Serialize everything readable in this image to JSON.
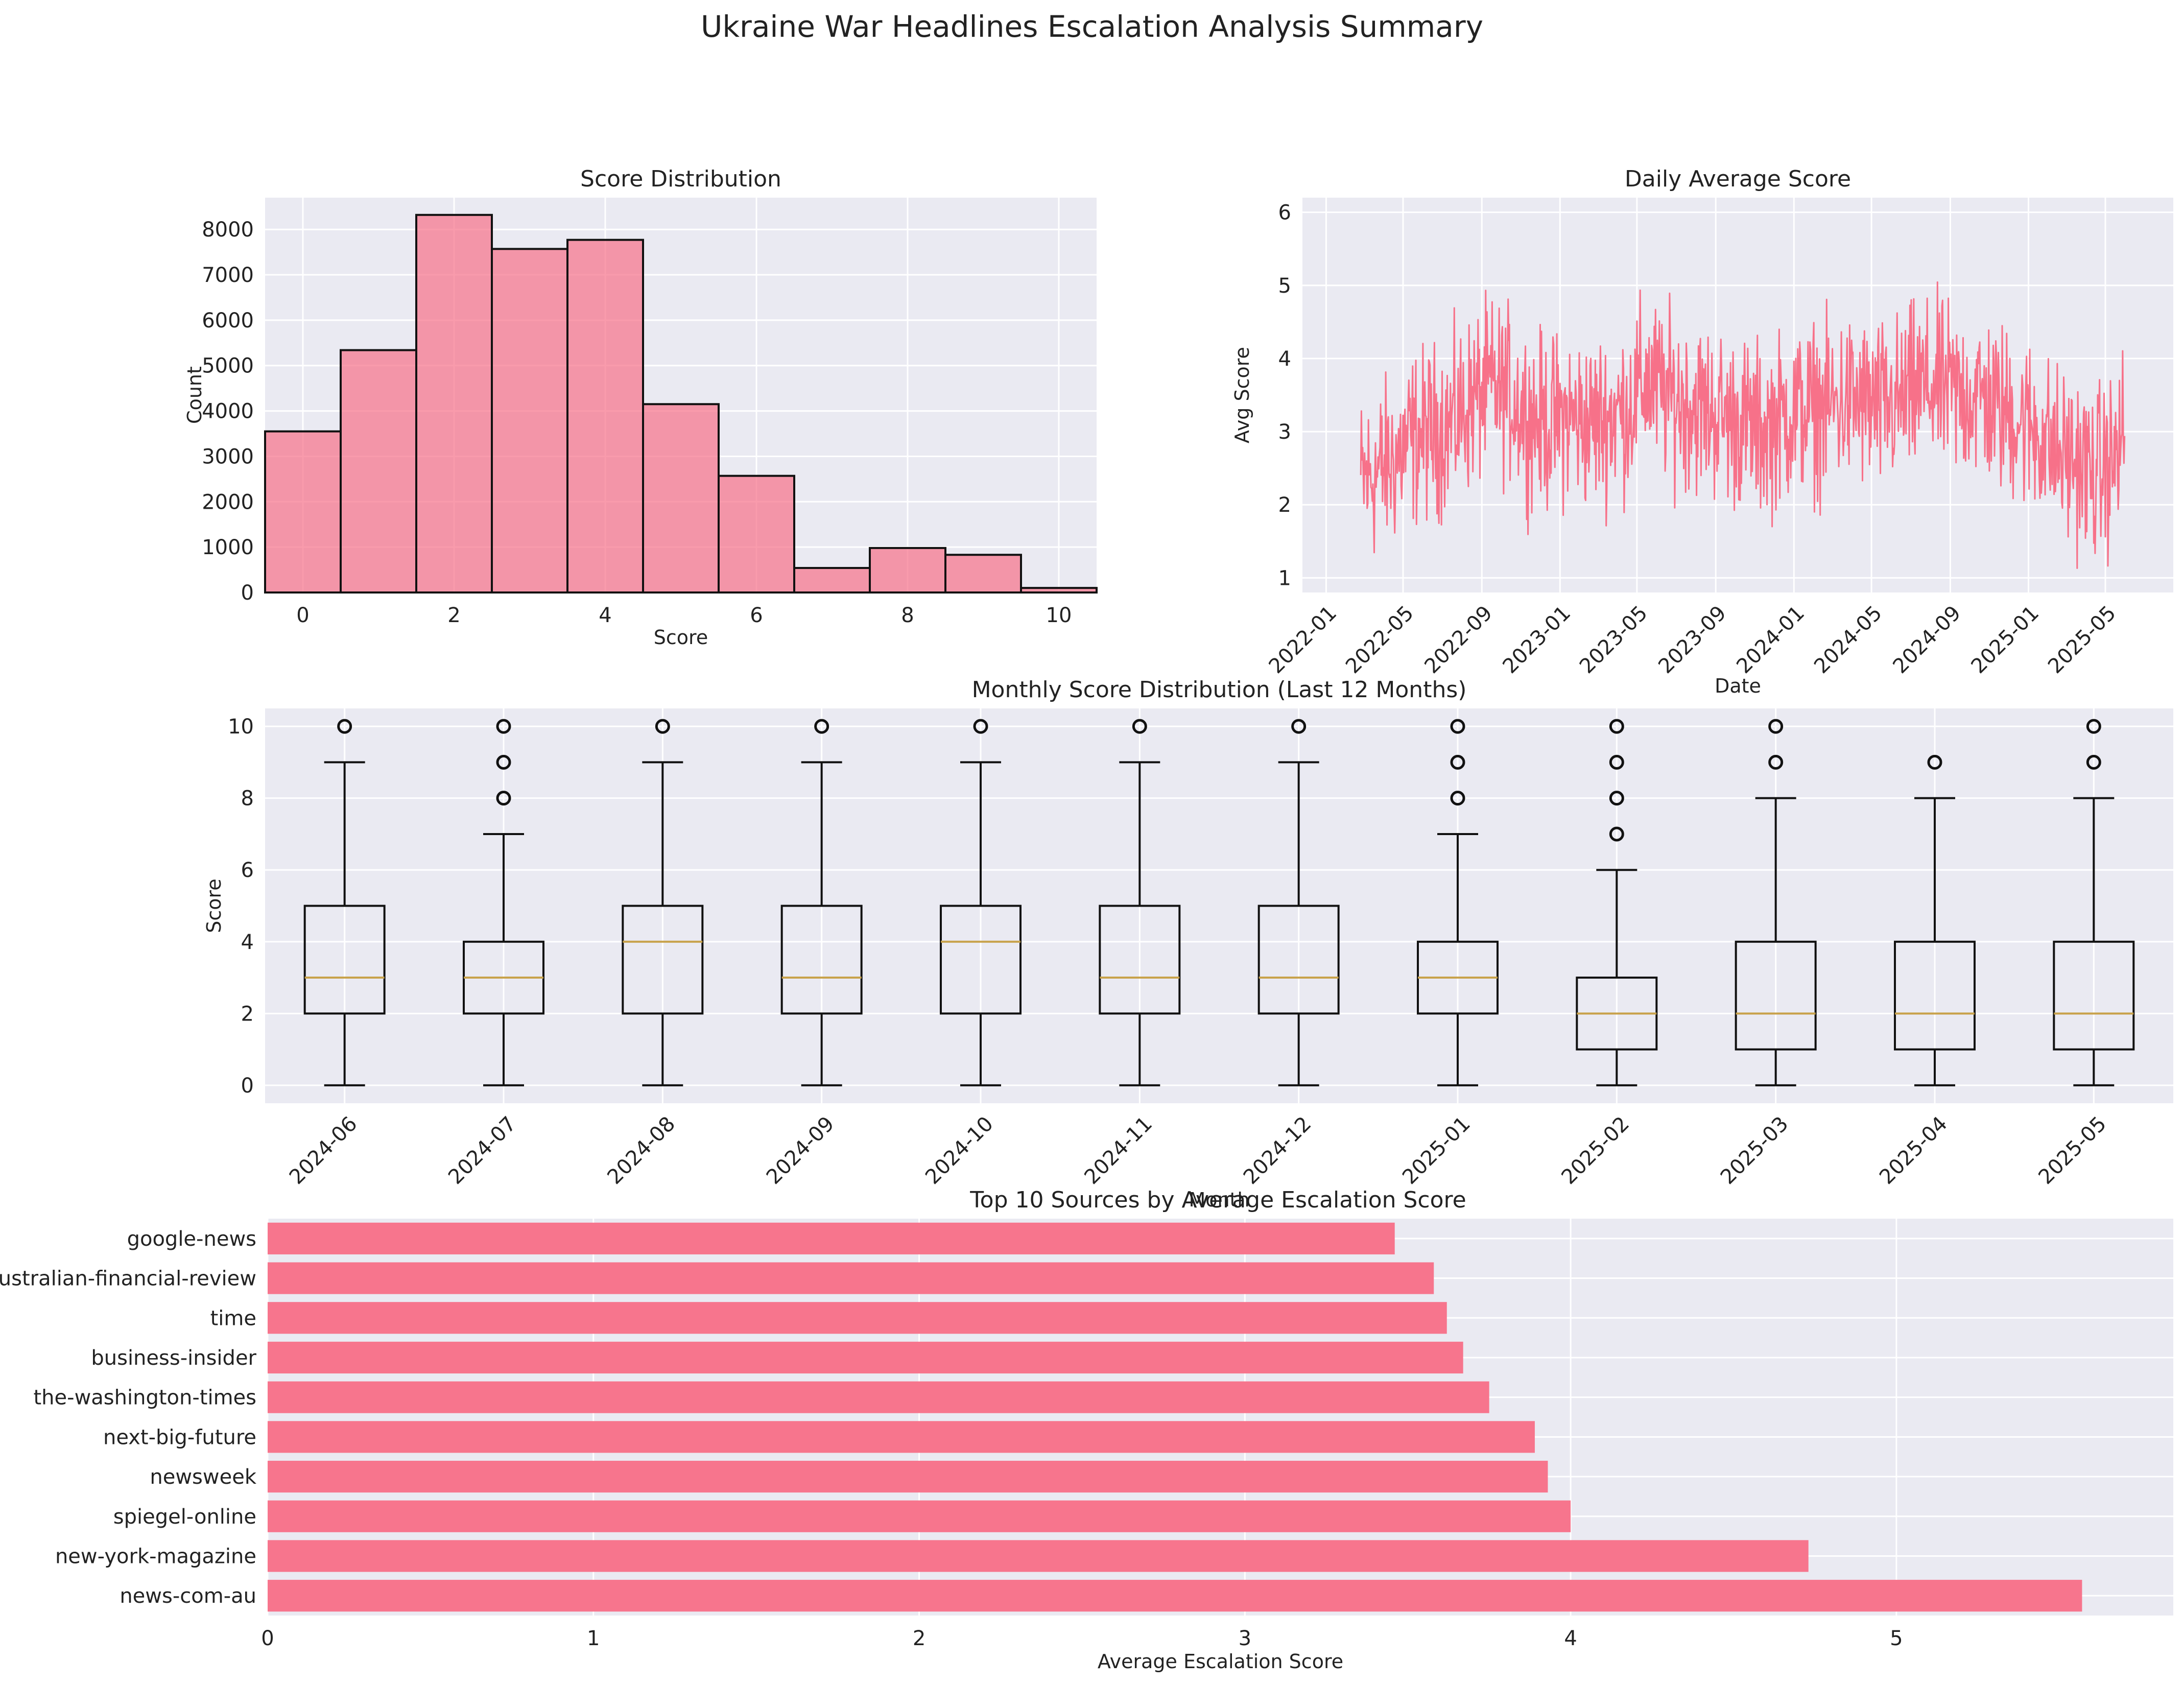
{
  "figure": {
    "title": "Ukraine War Headlines Escalation Analysis Summary"
  },
  "colors": {
    "panel_bg": "#eaeaf2",
    "grid": "#ffffff",
    "accent": "#f77189",
    "median": "#c8a24b",
    "edge": "#111111"
  },
  "chart_data": [
    {
      "type": "bar",
      "title": "Score Distribution",
      "xlabel": "Score",
      "ylabel": "Count",
      "categories": [
        0,
        1,
        2,
        3,
        4,
        5,
        6,
        7,
        8,
        9,
        10
      ],
      "values": [
        3550,
        5340,
        8320,
        7570,
        7770,
        4150,
        2570,
        540,
        980,
        830,
        100
      ],
      "xlim": [
        -0.5,
        10.5
      ],
      "ylim": [
        0,
        8700
      ],
      "xticks": [
        "0",
        "2",
        "4",
        "6",
        "8",
        "10"
      ],
      "yticks": [
        "0",
        "1000",
        "2000",
        "3000",
        "4000",
        "5000",
        "6000",
        "7000",
        "8000"
      ],
      "grid": true
    },
    {
      "type": "line",
      "title": "Daily Average Score",
      "xlabel": "Date",
      "ylabel": "Avg Score",
      "x_range": [
        "2022-02-24",
        "2025-05-31"
      ],
      "ylim": [
        0.8,
        6.2
      ],
      "xticks": [
        "2022-01",
        "2022-05",
        "2022-09",
        "2023-01",
        "2023-05",
        "2023-09",
        "2024-01",
        "2024-05",
        "2024-09",
        "2025-01",
        "2025-05"
      ],
      "yticks": [
        "1",
        "2",
        "3",
        "4",
        "5",
        "6"
      ],
      "series": [
        {
          "x": [
            "2022-02-24",
            "2022-03-15",
            "2022-04-15",
            "2022-05-15",
            "2022-06-15",
            "2022-07-15",
            "2022-08-15",
            "2022-09-15",
            "2022-10-15",
            "2022-11-15",
            "2022-12-15",
            "2023-01-15",
            "2023-02-15",
            "2023-03-15",
            "2023-04-15",
            "2023-05-15",
            "2023-06-15",
            "2023-07-15",
            "2023-08-15",
            "2023-09-15",
            "2023-10-15",
            "2023-11-15",
            "2023-12-15",
            "2024-01-15",
            "2024-02-15",
            "2024-03-15",
            "2024-04-15",
            "2024-05-15",
            "2024-06-15",
            "2024-07-15",
            "2024-08-15",
            "2024-09-15",
            "2024-10-15",
            "2024-11-15",
            "2024-12-15",
            "2025-01-15",
            "2025-02-15",
            "2025-03-15",
            "2025-04-15",
            "2025-05-15",
            "2025-05-31"
          ],
          "values": [
            2.3,
            2.4,
            2.6,
            2.9,
            3.0,
            3.1,
            3.4,
            3.6,
            3.5,
            3.2,
            3.1,
            3.2,
            3.1,
            3.2,
            3.3,
            3.7,
            3.5,
            3.4,
            3.3,
            3.2,
            3.1,
            3.0,
            3.2,
            3.3,
            3.3,
            3.4,
            3.4,
            3.3,
            3.4,
            3.6,
            3.6,
            3.5,
            3.5,
            3.3,
            3.2,
            3.0,
            2.7,
            2.6,
            2.4,
            2.6,
            3.0
          ]
        }
      ],
      "grid": true
    },
    {
      "type": "box",
      "title": "Monthly Score Distribution (Last 12 Months)",
      "xlabel": "Month",
      "ylabel": "Score",
      "ylim": [
        -0.5,
        10.5
      ],
      "yticks": [
        "0",
        "2",
        "4",
        "6",
        "8",
        "10"
      ],
      "categories": [
        "2024-06",
        "2024-07",
        "2024-08",
        "2024-09",
        "2024-10",
        "2024-11",
        "2024-12",
        "2025-01",
        "2025-02",
        "2025-03",
        "2025-04",
        "2025-05"
      ],
      "boxes": [
        {
          "min": 0,
          "q1": 2,
          "median": 3,
          "q3": 5,
          "max": 9,
          "outliers": [
            10
          ]
        },
        {
          "min": 0,
          "q1": 2,
          "median": 3,
          "q3": 4,
          "max": 7,
          "outliers": [
            8,
            9,
            10
          ]
        },
        {
          "min": 0,
          "q1": 2,
          "median": 4,
          "q3": 5,
          "max": 9,
          "outliers": [
            10
          ]
        },
        {
          "min": 0,
          "q1": 2,
          "median": 3,
          "q3": 5,
          "max": 9,
          "outliers": [
            10
          ]
        },
        {
          "min": 0,
          "q1": 2,
          "median": 4,
          "q3": 5,
          "max": 9,
          "outliers": [
            10
          ]
        },
        {
          "min": 0,
          "q1": 2,
          "median": 3,
          "q3": 5,
          "max": 9,
          "outliers": [
            10
          ]
        },
        {
          "min": 0,
          "q1": 2,
          "median": 3,
          "q3": 5,
          "max": 9,
          "outliers": [
            10
          ]
        },
        {
          "min": 0,
          "q1": 2,
          "median": 3,
          "q3": 4,
          "max": 7,
          "outliers": [
            8,
            9,
            10
          ]
        },
        {
          "min": 0,
          "q1": 1,
          "median": 2,
          "q3": 3,
          "max": 6,
          "outliers": [
            7,
            8,
            9,
            10
          ]
        },
        {
          "min": 0,
          "q1": 1,
          "median": 2,
          "q3": 4,
          "max": 8,
          "outliers": [
            9,
            10
          ]
        },
        {
          "min": 0,
          "q1": 1,
          "median": 2,
          "q3": 4,
          "max": 8,
          "outliers": [
            9
          ]
        },
        {
          "min": 0,
          "q1": 1,
          "median": 2,
          "q3": 4,
          "max": 8,
          "outliers": [
            9,
            10
          ]
        }
      ],
      "grid": true
    },
    {
      "type": "bar",
      "orientation": "horizontal",
      "title": "Top 10 Sources by Average Escalation Score",
      "xlabel": "Average Escalation Score",
      "ylabel": "",
      "categories": [
        "news-com-au",
        "new-york-magazine",
        "spiegel-online",
        "newsweek",
        "next-big-future",
        "the-washington-times",
        "business-insider",
        "time",
        "australian-financial-review",
        "google-news"
      ],
      "values": [
        5.57,
        4.73,
        4.0,
        3.93,
        3.89,
        3.75,
        3.67,
        3.62,
        3.58,
        3.46
      ],
      "xlim": [
        0,
        5.85
      ],
      "xticks": [
        "0",
        "1",
        "2",
        "3",
        "4",
        "5"
      ],
      "grid": true
    }
  ]
}
